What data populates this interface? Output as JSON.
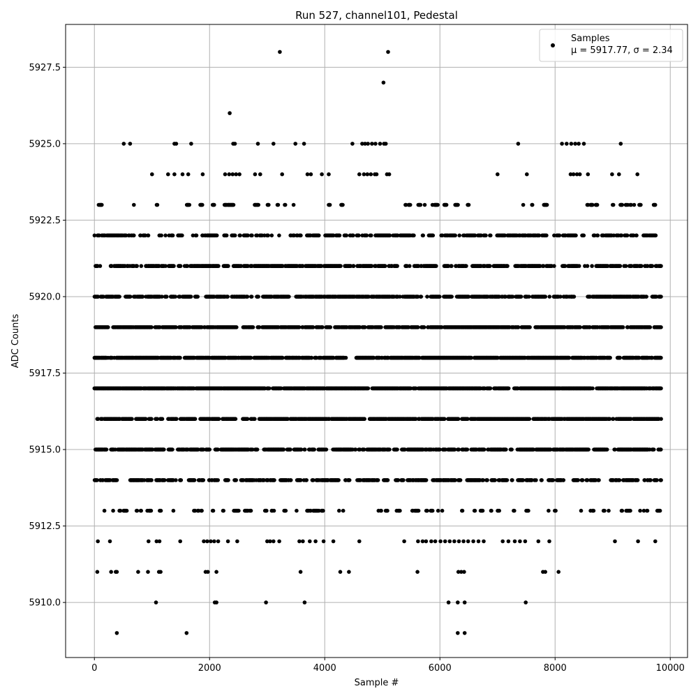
{
  "chart_data": {
    "type": "scatter",
    "title": "Run 527, channel101, Pedestal",
    "xlabel": "Sample #",
    "ylabel": "ADC Counts",
    "xlim": [
      -500,
      10300
    ],
    "ylim": [
      5908.2,
      5928.9
    ],
    "xticks": [
      0,
      2000,
      4000,
      6000,
      8000,
      10000
    ],
    "xtick_labels": [
      "0",
      "2000",
      "4000",
      "6000",
      "8000",
      "10000"
    ],
    "yticks": [
      5910.0,
      5912.5,
      5915.0,
      5917.5,
      5920.0,
      5922.5,
      5925.0,
      5927.5
    ],
    "ytick_labels": [
      "5910.0",
      "5912.5",
      "5915.0",
      "5917.5",
      "5920.0",
      "5922.5",
      "5925.0",
      "5927.5"
    ],
    "grid": true,
    "legend": {
      "placement": "top-right",
      "entries": [
        {
          "name": "Samples",
          "stats": "μ = 5917.77, σ = 2.34"
        }
      ]
    },
    "marker_color": "#000000",
    "stats": {
      "mean": 5917.77,
      "sigma": 2.34
    },
    "x_range": [
      0,
      9840
    ],
    "y_levels": [
      5909,
      5910,
      5911,
      5912,
      5913,
      5914,
      5915,
      5916,
      5917,
      5918,
      5919,
      5920,
      5921,
      5922,
      5923,
      5924,
      5925,
      5926,
      5927,
      5928
    ],
    "sample_count": 9841,
    "outliers": [
      {
        "x": 3220,
        "y": 5928
      },
      {
        "x": 5100,
        "y": 5928
      },
      {
        "x": 5020,
        "y": 5927
      },
      {
        "x": 2350,
        "y": 5926
      },
      {
        "x": 390,
        "y": 5909
      },
      {
        "x": 1600,
        "y": 5909
      },
      {
        "x": 6310,
        "y": 5909
      },
      {
        "x": 6430,
        "y": 5909
      }
    ],
    "sparse_levels": {
      "5925": [
        510,
        620,
        1390,
        1420,
        1680,
        2410,
        2440,
        2840,
        3110,
        3490,
        3640,
        4480,
        4650,
        4700,
        4750,
        4820,
        4880,
        4960,
        5030,
        5060,
        7360,
        8120,
        8200,
        8280,
        8350,
        8410,
        8500,
        9140
      ],
      "5924": [
        1000,
        1280,
        1390,
        1530,
        1630,
        1880,
        2270,
        2340,
        2400,
        2460,
        2520,
        2790,
        2880,
        3260,
        3700,
        3760,
        3950,
        4070,
        4600,
        4680,
        4740,
        4800,
        4870,
        4900,
        5080,
        5120,
        7000,
        7510,
        8270,
        8320,
        8380,
        8430,
        8570,
        8990,
        9110,
        9430
      ],
      "5912": [
        60,
        270,
        940,
        1080,
        1130,
        1490,
        1900,
        1960,
        2020,
        2080,
        2150,
        2320,
        2480,
        3000,
        3050,
        3110,
        3210,
        3560,
        3620,
        3740,
        3840,
        3980,
        4150,
        4600,
        5380,
        5620,
        5700,
        5760,
        5850,
        5920,
        6010,
        6090,
        6170,
        6250,
        6330,
        6410,
        6490,
        6580,
        6670,
        6760,
        7090,
        7190,
        7300,
        7390,
        7480,
        7710,
        7900,
        9040,
        9440,
        9740
      ],
      "5911": [
        50,
        290,
        370,
        390,
        760,
        930,
        1120,
        1150,
        1930,
        1970,
        2120,
        3580,
        4270,
        4420,
        5610,
        6320,
        6370,
        6420,
        7790,
        7830,
        8060
      ],
      "5910": [
        1070,
        2090,
        2120,
        2980,
        3650,
        6150,
        6310,
        6430,
        7490
      ]
    },
    "level_density": {
      "5923": 0.12,
      "5922": 0.45,
      "5921": 0.62,
      "5920": 0.68,
      "5919": 0.72,
      "5918": 0.78,
      "5917": 0.9,
      "5916": 0.82,
      "5915": 0.66,
      "5914": 0.5,
      "5913": 0.2
    }
  }
}
